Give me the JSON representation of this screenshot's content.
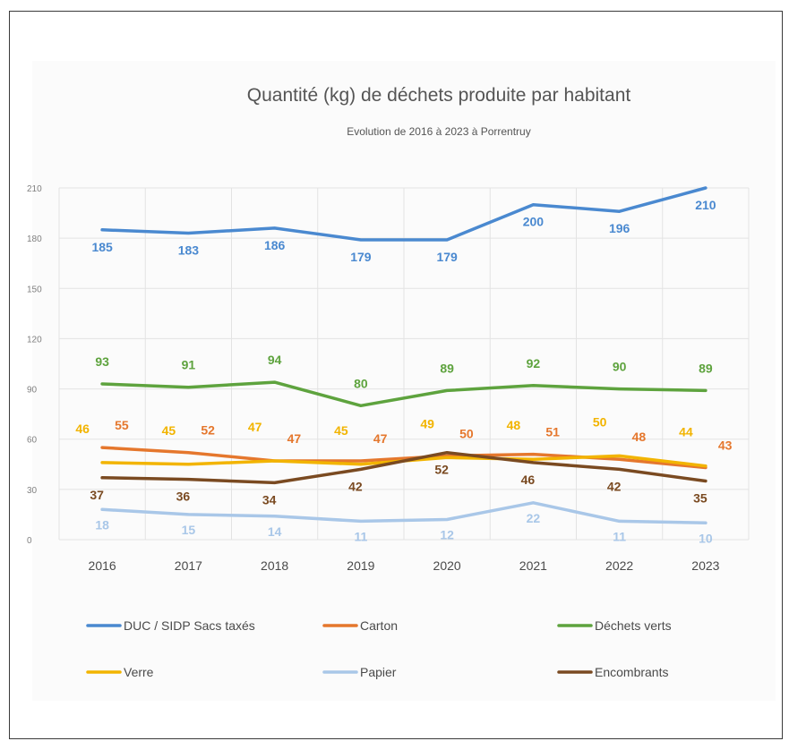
{
  "chart_data": {
    "type": "line",
    "title": "Quantité (kg) de déchets produite par habitant",
    "subtitle": "Evolution de 2016 à 2023 à Porrentruy",
    "categories": [
      "2016",
      "2017",
      "2018",
      "2019",
      "2020",
      "2021",
      "2022",
      "2023"
    ],
    "ylim": [
      0,
      210
    ],
    "ytick_values": [
      0,
      30,
      60,
      90,
      120,
      150,
      180,
      210
    ],
    "ytick_labels": [
      "0",
      "30",
      "60",
      "90",
      "120",
      "150",
      "180",
      "210"
    ],
    "grid": true,
    "legend_position": "bottom",
    "series": [
      {
        "name": "DUC / SIDP Sacs taxés",
        "color": "#4a89d0",
        "values": [
          185,
          183,
          186,
          179,
          179,
          200,
          196,
          210
        ]
      },
      {
        "name": "Carton",
        "color": "#e5772d",
        "values": [
          55,
          52,
          47,
          47,
          50,
          51,
          48,
          43
        ]
      },
      {
        "name": "Déchets verts",
        "color": "#5ea33e",
        "values": [
          93,
          91,
          94,
          80,
          89,
          92,
          90,
          89
        ]
      },
      {
        "name": "Verre",
        "color": "#f2b400",
        "values": [
          46,
          45,
          47,
          45,
          49,
          48,
          50,
          44
        ]
      },
      {
        "name": "Papier",
        "color": "#a9c7e8",
        "values": [
          18,
          15,
          14,
          11,
          12,
          22,
          11,
          10
        ]
      },
      {
        "name": "Encombrants",
        "color": "#7a4a21",
        "values": [
          37,
          36,
          34,
          42,
          52,
          46,
          42,
          35
        ]
      }
    ]
  }
}
